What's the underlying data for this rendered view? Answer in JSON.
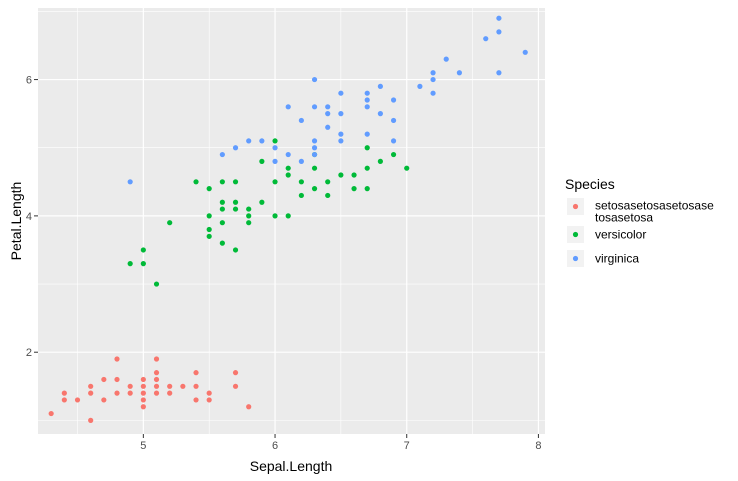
{
  "chart_data": {
    "type": "scatter",
    "xlabel": "Sepal.Length",
    "ylabel": "Petal.Length",
    "xlim": [
      4.2,
      8.05
    ],
    "ylim": [
      0.8,
      7.05
    ],
    "x_ticks": [
      5,
      6,
      7,
      8
    ],
    "y_ticks": [
      2,
      4,
      6
    ],
    "grid": true,
    "legend_position": "right",
    "legend": {
      "title": "Species",
      "entries": [
        {
          "label_lines": [
            "setosasetosasetosase",
            "tosasetosa"
          ],
          "color": "#F8766D"
        },
        {
          "label_lines": [
            "versicolor"
          ],
          "color": "#00BA38"
        },
        {
          "label_lines": [
            "virginica"
          ],
          "color": "#619CFF"
        }
      ]
    },
    "series": [
      {
        "name": "setosasetosasetosasetosasetosa",
        "color": "#F8766D",
        "points": [
          [
            4.3,
            1.1
          ],
          [
            4.4,
            1.3
          ],
          [
            4.4,
            1.4
          ],
          [
            4.5,
            1.3
          ],
          [
            4.6,
            1.0
          ],
          [
            4.6,
            1.4
          ],
          [
            4.6,
            1.5
          ],
          [
            4.7,
            1.3
          ],
          [
            4.7,
            1.6
          ],
          [
            4.8,
            1.4
          ],
          [
            4.8,
            1.6
          ],
          [
            4.8,
            1.9
          ],
          [
            4.9,
            1.4
          ],
          [
            4.9,
            1.5
          ],
          [
            5.0,
            1.2
          ],
          [
            5.0,
            1.3
          ],
          [
            5.0,
            1.4
          ],
          [
            5.0,
            1.5
          ],
          [
            5.0,
            1.6
          ],
          [
            5.1,
            1.4
          ],
          [
            5.1,
            1.5
          ],
          [
            5.1,
            1.6
          ],
          [
            5.1,
            1.7
          ],
          [
            5.1,
            1.9
          ],
          [
            5.2,
            1.4
          ],
          [
            5.2,
            1.5
          ],
          [
            5.3,
            1.5
          ],
          [
            5.4,
            1.3
          ],
          [
            5.4,
            1.5
          ],
          [
            5.4,
            1.7
          ],
          [
            5.5,
            1.3
          ],
          [
            5.5,
            1.4
          ],
          [
            5.7,
            1.5
          ],
          [
            5.7,
            1.7
          ],
          [
            5.8,
            1.2
          ]
        ]
      },
      {
        "name": "versicolor",
        "color": "#00BA38",
        "points": [
          [
            4.9,
            3.3
          ],
          [
            5.0,
            3.3
          ],
          [
            5.0,
            3.5
          ],
          [
            5.1,
            3.0
          ],
          [
            5.2,
            3.9
          ],
          [
            5.4,
            4.5
          ],
          [
            5.5,
            3.7
          ],
          [
            5.5,
            3.8
          ],
          [
            5.5,
            4.0
          ],
          [
            5.5,
            4.4
          ],
          [
            5.6,
            3.6
          ],
          [
            5.6,
            3.9
          ],
          [
            5.6,
            4.1
          ],
          [
            5.6,
            4.2
          ],
          [
            5.6,
            4.5
          ],
          [
            5.7,
            3.5
          ],
          [
            5.7,
            4.1
          ],
          [
            5.7,
            4.2
          ],
          [
            5.7,
            4.5
          ],
          [
            5.8,
            3.9
          ],
          [
            5.8,
            4.0
          ],
          [
            5.8,
            4.1
          ],
          [
            5.9,
            4.2
          ],
          [
            5.9,
            4.8
          ],
          [
            6.0,
            4.0
          ],
          [
            6.0,
            4.5
          ],
          [
            6.0,
            5.1
          ],
          [
            6.1,
            4.0
          ],
          [
            6.1,
            4.6
          ],
          [
            6.1,
            4.7
          ],
          [
            6.2,
            4.3
          ],
          [
            6.2,
            4.5
          ],
          [
            6.3,
            4.4
          ],
          [
            6.3,
            4.7
          ],
          [
            6.3,
            4.9
          ],
          [
            6.4,
            4.3
          ],
          [
            6.4,
            4.5
          ],
          [
            6.5,
            4.6
          ],
          [
            6.6,
            4.4
          ],
          [
            6.6,
            4.6
          ],
          [
            6.7,
            4.4
          ],
          [
            6.7,
            4.7
          ],
          [
            6.7,
            5.0
          ],
          [
            6.8,
            4.8
          ],
          [
            6.9,
            4.9
          ],
          [
            7.0,
            4.7
          ]
        ]
      },
      {
        "name": "virginica",
        "color": "#619CFF",
        "points": [
          [
            4.9,
            4.5
          ],
          [
            5.6,
            4.9
          ],
          [
            5.7,
            5.0
          ],
          [
            5.8,
            5.1
          ],
          [
            5.9,
            5.1
          ],
          [
            6.0,
            4.8
          ],
          [
            6.0,
            5.0
          ],
          [
            6.1,
            4.9
          ],
          [
            6.1,
            5.6
          ],
          [
            6.2,
            4.8
          ],
          [
            6.2,
            5.4
          ],
          [
            6.3,
            4.9
          ],
          [
            6.3,
            5.0
          ],
          [
            6.3,
            5.1
          ],
          [
            6.3,
            5.6
          ],
          [
            6.3,
            6.0
          ],
          [
            6.4,
            5.3
          ],
          [
            6.4,
            5.5
          ],
          [
            6.4,
            5.6
          ],
          [
            6.5,
            5.1
          ],
          [
            6.5,
            5.2
          ],
          [
            6.5,
            5.5
          ],
          [
            6.5,
            5.8
          ],
          [
            6.7,
            5.2
          ],
          [
            6.7,
            5.6
          ],
          [
            6.7,
            5.7
          ],
          [
            6.7,
            5.8
          ],
          [
            6.8,
            5.5
          ],
          [
            6.8,
            5.9
          ],
          [
            6.9,
            5.1
          ],
          [
            6.9,
            5.4
          ],
          [
            6.9,
            5.7
          ],
          [
            7.1,
            5.9
          ],
          [
            7.2,
            5.8
          ],
          [
            7.2,
            6.0
          ],
          [
            7.2,
            6.1
          ],
          [
            7.3,
            6.3
          ],
          [
            7.4,
            6.1
          ],
          [
            7.6,
            6.6
          ],
          [
            7.7,
            6.1
          ],
          [
            7.7,
            6.7
          ],
          [
            7.7,
            6.9
          ],
          [
            7.9,
            6.4
          ]
        ]
      }
    ]
  }
}
